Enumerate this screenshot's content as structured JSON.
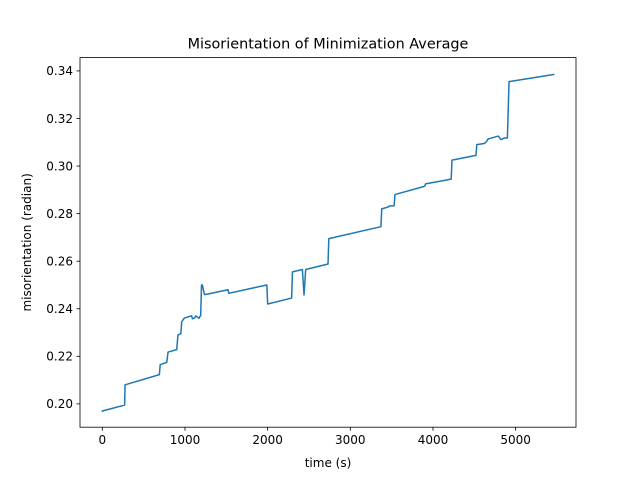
{
  "chart_data": {
    "type": "line",
    "title": "Misorientation of Minimization Average",
    "xlabel": "time (s)",
    "ylabel": "misorientation (radian)",
    "xlim": [
      -270,
      5730
    ],
    "ylim": [
      0.1902,
      0.3456
    ],
    "xticks": [
      0,
      1000,
      2000,
      3000,
      4000,
      5000
    ],
    "xtick_labels": [
      "0",
      "1000",
      "2000",
      "3000",
      "4000",
      "5000"
    ],
    "yticks": [
      0.2,
      0.22,
      0.24,
      0.26,
      0.28,
      0.3,
      0.32,
      0.34
    ],
    "ytick_labels": [
      "0.20",
      "0.22",
      "0.24",
      "0.26",
      "0.28",
      "0.30",
      "0.32",
      "0.34"
    ],
    "grid": false,
    "color": "#1f77b4",
    "series": [
      {
        "x": [
          0,
          270,
          275,
          690,
          700,
          780,
          795,
          900,
          915,
          950,
          960,
          990,
          1000,
          1080,
          1090,
          1120,
          1130,
          1170,
          1180,
          1190,
          1200,
          1210,
          1235,
          1250,
          1520,
          1530,
          1990,
          2000,
          2290,
          2300,
          2420,
          2440,
          2460,
          2730,
          2740,
          3370,
          3380,
          3460,
          3470,
          3530,
          3540,
          3900,
          3910,
          4220,
          4230,
          4520,
          4530,
          4620,
          4640,
          4670,
          4680,
          4790,
          4820,
          4830,
          4860,
          4900,
          4920,
          5460
        ],
        "y": [
          0.197,
          0.1995,
          0.208,
          0.2123,
          0.2165,
          0.2175,
          0.2218,
          0.2228,
          0.229,
          0.2295,
          0.2345,
          0.236,
          0.2362,
          0.237,
          0.2358,
          0.2362,
          0.237,
          0.236,
          0.2368,
          0.237,
          0.25,
          0.25,
          0.246,
          0.246,
          0.248,
          0.2465,
          0.25,
          0.242,
          0.2445,
          0.2555,
          0.2565,
          0.2458,
          0.2565,
          0.2588,
          0.2695,
          0.2745,
          0.282,
          0.2828,
          0.2832,
          0.2833,
          0.288,
          0.2915,
          0.2925,
          0.2945,
          0.3025,
          0.3045,
          0.309,
          0.3095,
          0.31,
          0.3115,
          0.3115,
          0.3126,
          0.3112,
          0.3112,
          0.3118,
          0.3118,
          0.3355,
          0.3385
        ]
      }
    ]
  }
}
